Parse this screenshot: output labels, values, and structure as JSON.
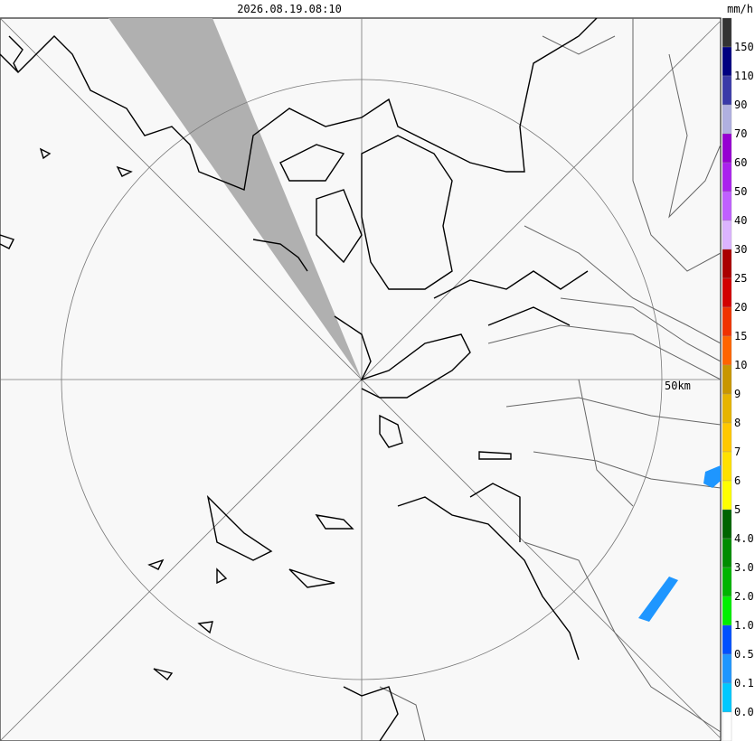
{
  "header": {
    "timestamp": "2026.08.19.08:10",
    "unit": "mm/h"
  },
  "map": {
    "range_label": "50km"
  },
  "legend": {
    "labels": [
      "150",
      "110",
      "90",
      "70",
      "60",
      "50",
      "40",
      "30",
      "25",
      "20",
      "15",
      "10",
      "9",
      "8",
      "7",
      "6",
      "5",
      "4.0",
      "3.0",
      "2.0",
      "1.0",
      "0.5",
      "0.1",
      "0.0"
    ],
    "colors": [
      "#333333",
      "#000080",
      "#3a3aa8",
      "#b0b0e0",
      "#9600d2",
      "#aa22ee",
      "#c060ff",
      "#dcb4ff",
      "#aa0000",
      "#d20000",
      "#f03200",
      "#ff6400",
      "#c89600",
      "#e6b400",
      "#ffc800",
      "#ffe100",
      "#ffff00",
      "#006400",
      "#008c00",
      "#00b400",
      "#00f000",
      "#0050ff",
      "#1e96ff",
      "#00c8ff",
      "#ffffff"
    ]
  }
}
